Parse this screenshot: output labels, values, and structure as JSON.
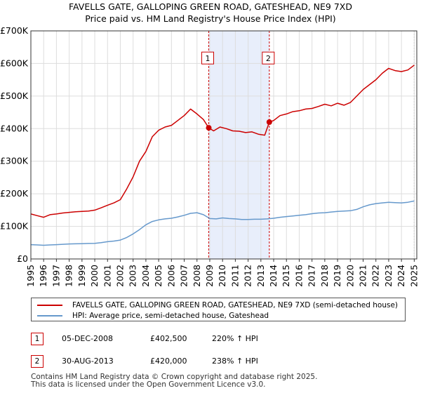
{
  "chart_data": {
    "type": "line",
    "title": "FAVELLS GATE, GALLOPING GREEN ROAD, GATESHEAD, NE9 7XD",
    "subtitle": "Price paid vs. HM Land Registry's House Price Index (HPI)",
    "xlabel": "",
    "ylabel": "",
    "xlim": [
      1995.0,
      2025.2
    ],
    "ylim": [
      0,
      700000
    ],
    "grid": true,
    "y_ticks": [
      {
        "value": 0,
        "label": "£0"
      },
      {
        "value": 100000,
        "label": "£100K"
      },
      {
        "value": 200000,
        "label": "£200K"
      },
      {
        "value": 300000,
        "label": "£300K"
      },
      {
        "value": 400000,
        "label": "£400K"
      },
      {
        "value": 500000,
        "label": "£500K"
      },
      {
        "value": 600000,
        "label": "£600K"
      },
      {
        "value": 700000,
        "label": "£700K"
      }
    ],
    "x_ticks": [
      "1995",
      "1996",
      "1997",
      "1998",
      "1999",
      "2000",
      "2001",
      "2002",
      "2003",
      "2004",
      "2005",
      "2006",
      "2007",
      "2008",
      "2009",
      "2010",
      "2011",
      "2012",
      "2013",
      "2014",
      "2015",
      "2016",
      "2017",
      "2018",
      "2019",
      "2020",
      "2021",
      "2022",
      "2023",
      "2024",
      "2025"
    ],
    "shaded_range": [
      2008.92,
      2013.66
    ],
    "series": [
      {
        "name": "FAVELLS GATE, GALLOPING GREEN ROAD, GATESHEAD, NE9 7XD (semi-detached house)",
        "color": "#cc0000",
        "x": [
          1995.0,
          1995.5,
          1996.0,
          1996.5,
          1997.0,
          1997.5,
          1998.0,
          1998.5,
          1999.0,
          1999.5,
          2000.0,
          2000.5,
          2001.0,
          2001.5,
          2002.0,
          2002.5,
          2003.0,
          2003.5,
          2004.0,
          2004.5,
          2005.0,
          2005.5,
          2006.0,
          2006.5,
          2007.0,
          2007.5,
          2008.0,
          2008.5,
          2008.92,
          2009.3,
          2009.8,
          2010.3,
          2010.8,
          2011.3,
          2011.8,
          2012.3,
          2012.8,
          2013.3,
          2013.66,
          2014.0,
          2014.5,
          2015.0,
          2015.5,
          2016.0,
          2016.5,
          2017.0,
          2017.5,
          2018.0,
          2018.5,
          2019.0,
          2019.5,
          2020.0,
          2020.5,
          2021.0,
          2021.5,
          2022.0,
          2022.5,
          2023.0,
          2023.5,
          2024.0,
          2024.5,
          2025.0
        ],
        "values": [
          138000,
          133000,
          128000,
          136000,
          138000,
          141000,
          143000,
          145000,
          146000,
          147000,
          150000,
          157000,
          165000,
          172000,
          182000,
          215000,
          252000,
          300000,
          330000,
          375000,
          395000,
          405000,
          410000,
          425000,
          440000,
          460000,
          445000,
          428000,
          402500,
          393000,
          405000,
          400000,
          393000,
          392000,
          388000,
          390000,
          383000,
          380000,
          420000,
          425000,
          440000,
          445000,
          452000,
          455000,
          460000,
          462000,
          468000,
          475000,
          470000,
          478000,
          472000,
          480000,
          500000,
          520000,
          535000,
          550000,
          570000,
          585000,
          578000,
          575000,
          580000,
          595000
        ]
      },
      {
        "name": "HPI: Average price, semi-detached house, Gateshead",
        "color": "#6699cc",
        "x": [
          1995.0,
          1995.5,
          1996.0,
          1996.5,
          1997.0,
          1997.5,
          1998.0,
          1998.5,
          1999.0,
          1999.5,
          2000.0,
          2000.5,
          2001.0,
          2001.5,
          2002.0,
          2002.5,
          2003.0,
          2003.5,
          2004.0,
          2004.5,
          2005.0,
          2005.5,
          2006.0,
          2006.5,
          2007.0,
          2007.5,
          2008.0,
          2008.5,
          2009.0,
          2009.5,
          2010.0,
          2010.5,
          2011.0,
          2011.5,
          2012.0,
          2012.5,
          2013.0,
          2013.5,
          2014.0,
          2014.5,
          2015.0,
          2015.5,
          2016.0,
          2016.5,
          2017.0,
          2017.5,
          2018.0,
          2018.5,
          2019.0,
          2019.5,
          2020.0,
          2020.5,
          2021.0,
          2021.5,
          2022.0,
          2022.5,
          2023.0,
          2023.5,
          2024.0,
          2024.5,
          2025.0
        ],
        "values": [
          44000,
          43000,
          42000,
          43000,
          44000,
          45000,
          46000,
          46500,
          47000,
          47500,
          48000,
          50000,
          53000,
          55000,
          58000,
          66000,
          77000,
          90000,
          105000,
          115000,
          120000,
          123000,
          125000,
          129000,
          134000,
          140000,
          142000,
          136000,
          124000,
          123000,
          126000,
          124000,
          123000,
          121000,
          121000,
          122000,
          122000,
          123000,
          125000,
          128000,
          130000,
          132000,
          134000,
          136000,
          139000,
          141000,
          142000,
          144000,
          146000,
          147000,
          148000,
          152000,
          160000,
          166000,
          170000,
          172000,
          174000,
          173000,
          172000,
          174000,
          178000
        ]
      }
    ],
    "markers": [
      {
        "label": "1",
        "x": 2008.92,
        "y": 402500
      },
      {
        "label": "2",
        "x": 2013.66,
        "y": 420000
      }
    ]
  },
  "legend": {
    "property": "FAVELLS GATE, GALLOPING GREEN ROAD, GATESHEAD, NE9 7XD (semi-detached house)",
    "hpi": "HPI: Average price, semi-detached house, Gateshead"
  },
  "sales": [
    {
      "num": "1",
      "date": "05-DEC-2008",
      "price": "£402,500",
      "hpi": "220% ↑ HPI"
    },
    {
      "num": "2",
      "date": "30-AUG-2013",
      "price": "£420,000",
      "hpi": "238% ↑ HPI"
    }
  ],
  "footer": {
    "line1": "Contains HM Land Registry data © Crown copyright and database right 2025.",
    "line2": "This data is licensed under the Open Government Licence v3.0."
  },
  "colors": {
    "property": "#cc0000",
    "hpi": "#6699cc",
    "shade": "#e8eefb"
  }
}
